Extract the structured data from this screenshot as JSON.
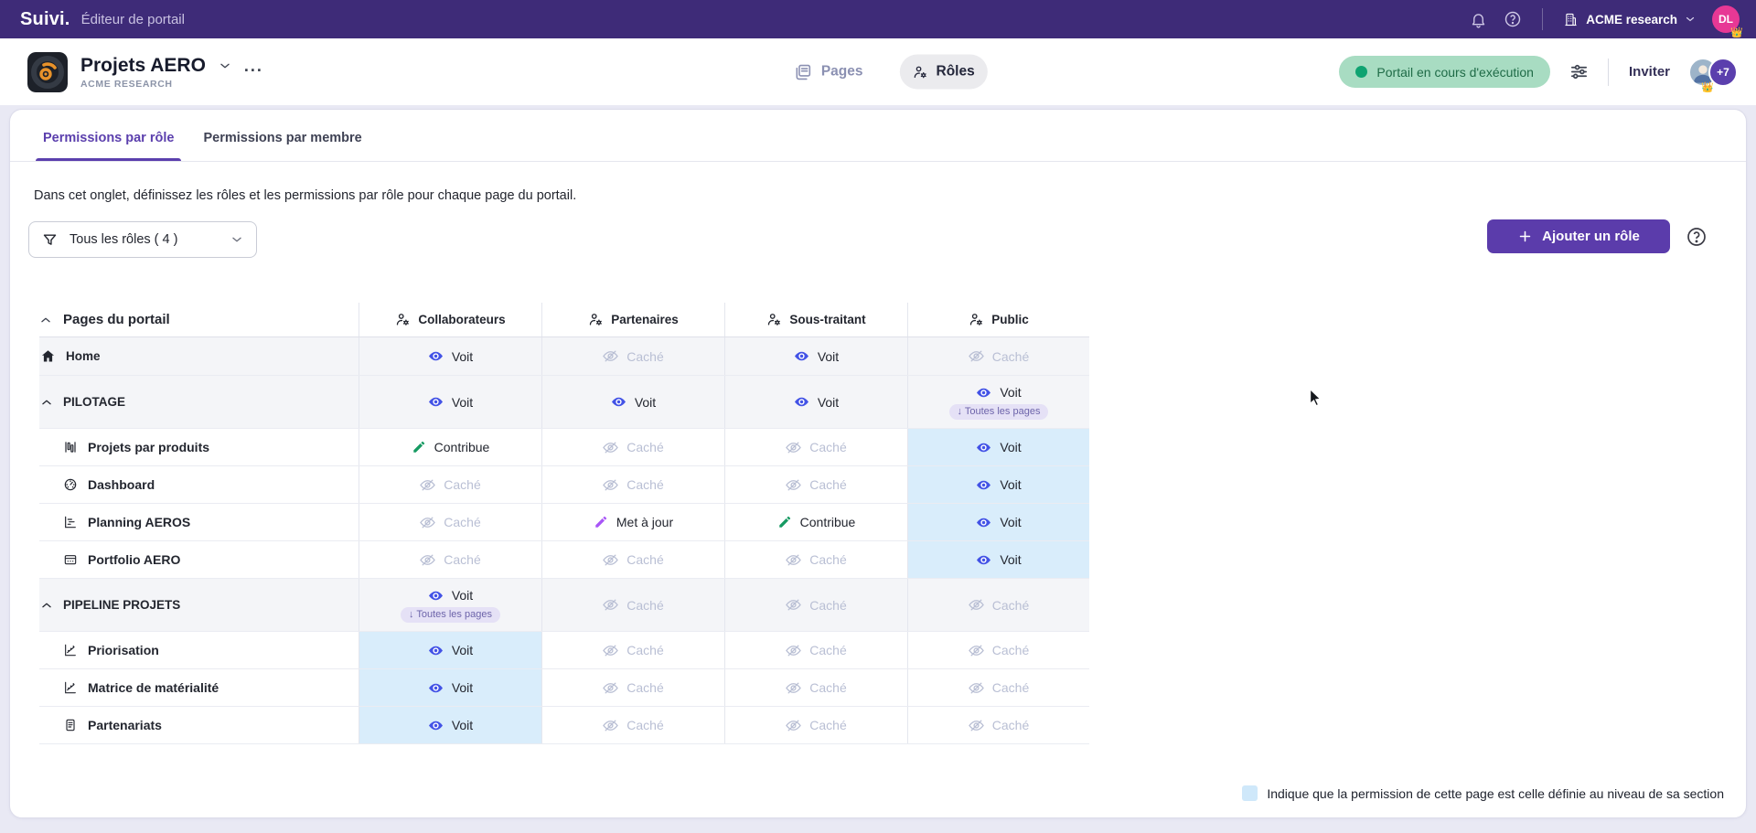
{
  "topbar": {
    "brand": "Suivi.",
    "app_title": "Éditeur de portail",
    "org_switcher": "ACME research",
    "avatar_initials": "DL",
    "avatar_crown": "👑",
    "icons": [
      "bell-icon",
      "help-circle-icon",
      "building-icon",
      "chevron-down-icon"
    ]
  },
  "header": {
    "portal_name": "Projets AERO",
    "portal_org": "ACME RESEARCH",
    "more_label": "...",
    "nav_pages": "Pages",
    "nav_roles": "Rôles",
    "status": "Portail en cours d'exécution",
    "invite": "Inviter",
    "members_more": "+7",
    "members_crown": "👑"
  },
  "tabs": {
    "by_role": "Permissions par rôle",
    "by_member": "Permissions par membre"
  },
  "intro": "Dans cet onglet, définissez les rôles et les permissions par rôle pour chaque page du portail.",
  "controls": {
    "filter": "Tous les rôles ( 4 )",
    "add_role": "Ajouter un rôle"
  },
  "table": {
    "pages_header": "Pages du portail",
    "columns": [
      "Collaborateurs",
      "Partenaires",
      "Sous-traitant",
      "Public"
    ],
    "perm_labels": {
      "view": "Voit",
      "hidden": "Caché",
      "contribute": "Contribue",
      "update": "Met à jour"
    },
    "all_pages_badge": "Toutes les pages",
    "rows": [
      {
        "label": "Home",
        "kind": "root",
        "icon": "home-icon",
        "cells": [
          {
            "perm": "view"
          },
          {
            "perm": "hidden"
          },
          {
            "perm": "view"
          },
          {
            "perm": "hidden"
          }
        ]
      },
      {
        "label": "PILOTAGE",
        "kind": "section",
        "icon": "chevron-up-icon",
        "cells": [
          {
            "perm": "view"
          },
          {
            "perm": "view"
          },
          {
            "perm": "view"
          },
          {
            "perm": "view",
            "badge": true
          }
        ]
      },
      {
        "label": "Projets par produits",
        "kind": "page",
        "icon": "column-chart-icon",
        "cells": [
          {
            "perm": "contribute"
          },
          {
            "perm": "hidden"
          },
          {
            "perm": "hidden"
          },
          {
            "perm": "view",
            "inherited": true
          }
        ]
      },
      {
        "label": "Dashboard",
        "kind": "page",
        "icon": "gauge-icon",
        "cells": [
          {
            "perm": "hidden"
          },
          {
            "perm": "hidden"
          },
          {
            "perm": "hidden"
          },
          {
            "perm": "view",
            "inherited": true
          }
        ]
      },
      {
        "label": "Planning AEROS",
        "kind": "page",
        "icon": "gantt-icon",
        "cells": [
          {
            "perm": "hidden"
          },
          {
            "perm": "update"
          },
          {
            "perm": "contribute"
          },
          {
            "perm": "view",
            "inherited": true
          }
        ]
      },
      {
        "label": "Portfolio AERO",
        "kind": "page",
        "icon": "portfolio-icon",
        "cells": [
          {
            "perm": "hidden"
          },
          {
            "perm": "hidden"
          },
          {
            "perm": "hidden"
          },
          {
            "perm": "view",
            "inherited": true
          }
        ]
      },
      {
        "label": "PIPELINE PROJETS",
        "kind": "section",
        "icon": "chevron-up-icon",
        "cells": [
          {
            "perm": "view",
            "badge": true
          },
          {
            "perm": "hidden"
          },
          {
            "perm": "hidden"
          },
          {
            "perm": "hidden"
          }
        ]
      },
      {
        "label": "Priorisation",
        "kind": "page",
        "icon": "scatter-chart-icon",
        "cells": [
          {
            "perm": "view",
            "inherited": true
          },
          {
            "perm": "hidden"
          },
          {
            "perm": "hidden"
          },
          {
            "perm": "hidden"
          }
        ]
      },
      {
        "label": "Matrice de matérialité",
        "kind": "page",
        "icon": "scatter-chart-icon",
        "cells": [
          {
            "perm": "view",
            "inherited": true
          },
          {
            "perm": "hidden"
          },
          {
            "perm": "hidden"
          },
          {
            "perm": "hidden"
          }
        ]
      },
      {
        "label": "Partenariats",
        "kind": "page",
        "icon": "document-icon",
        "cells": [
          {
            "perm": "view",
            "inherited": true
          },
          {
            "perm": "hidden"
          },
          {
            "perm": "hidden"
          },
          {
            "perm": "hidden"
          }
        ]
      }
    ]
  },
  "legend": "Indique que la permission de cette page est celle définie au niveau de sa section",
  "colors": {
    "topbar_purple": "#3e2b78",
    "accent_purple": "#5b3cab",
    "view_blue": "#4353e6",
    "hidden_gray": "#b9bfd4",
    "contribute_green": "#169a62",
    "update_violet": "#a855f7",
    "inherited_blue_bg": "#d9edfb",
    "status_green_bg": "#a8dcc2",
    "status_green_text": "#1f6b47",
    "avatar_pink": "#e73895"
  }
}
